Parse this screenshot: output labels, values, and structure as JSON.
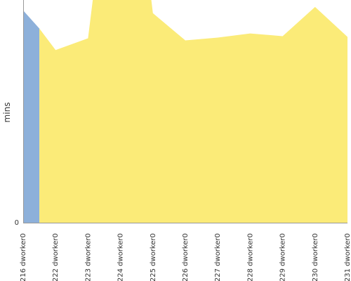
{
  "chart_data": {
    "type": "area",
    "ylabel": "mins",
    "ylim": [
      0,
      32
    ],
    "yticks": [
      "0"
    ],
    "categories": [
      "#216 dworker0",
      "#222 dworker0",
      "#223 dworker0",
      "#224 dworker0",
      "#225 dworker0",
      "#226 dworker0",
      "#227 dworker0",
      "#228 dworker0",
      "#229 dworker0",
      "#230 dworker0",
      "#231 dworker0"
    ],
    "series": [
      {
        "color": "#8db0da",
        "points": [
          [
            0,
            30.5
          ],
          [
            0.5,
            27.9
          ]
        ]
      },
      {
        "color": "#fbeb78",
        "points": [
          [
            0.5,
            27.9
          ],
          [
            1,
            24.8
          ],
          [
            2,
            26.5
          ],
          [
            2.2,
            34
          ],
          [
            3.9,
            34
          ],
          [
            4,
            30.1
          ],
          [
            5,
            26.2
          ],
          [
            6,
            26.6
          ],
          [
            7,
            27.2
          ],
          [
            8,
            26.8
          ],
          [
            9,
            31.0
          ],
          [
            10,
            26.7
          ]
        ]
      }
    ],
    "grid": false
  }
}
